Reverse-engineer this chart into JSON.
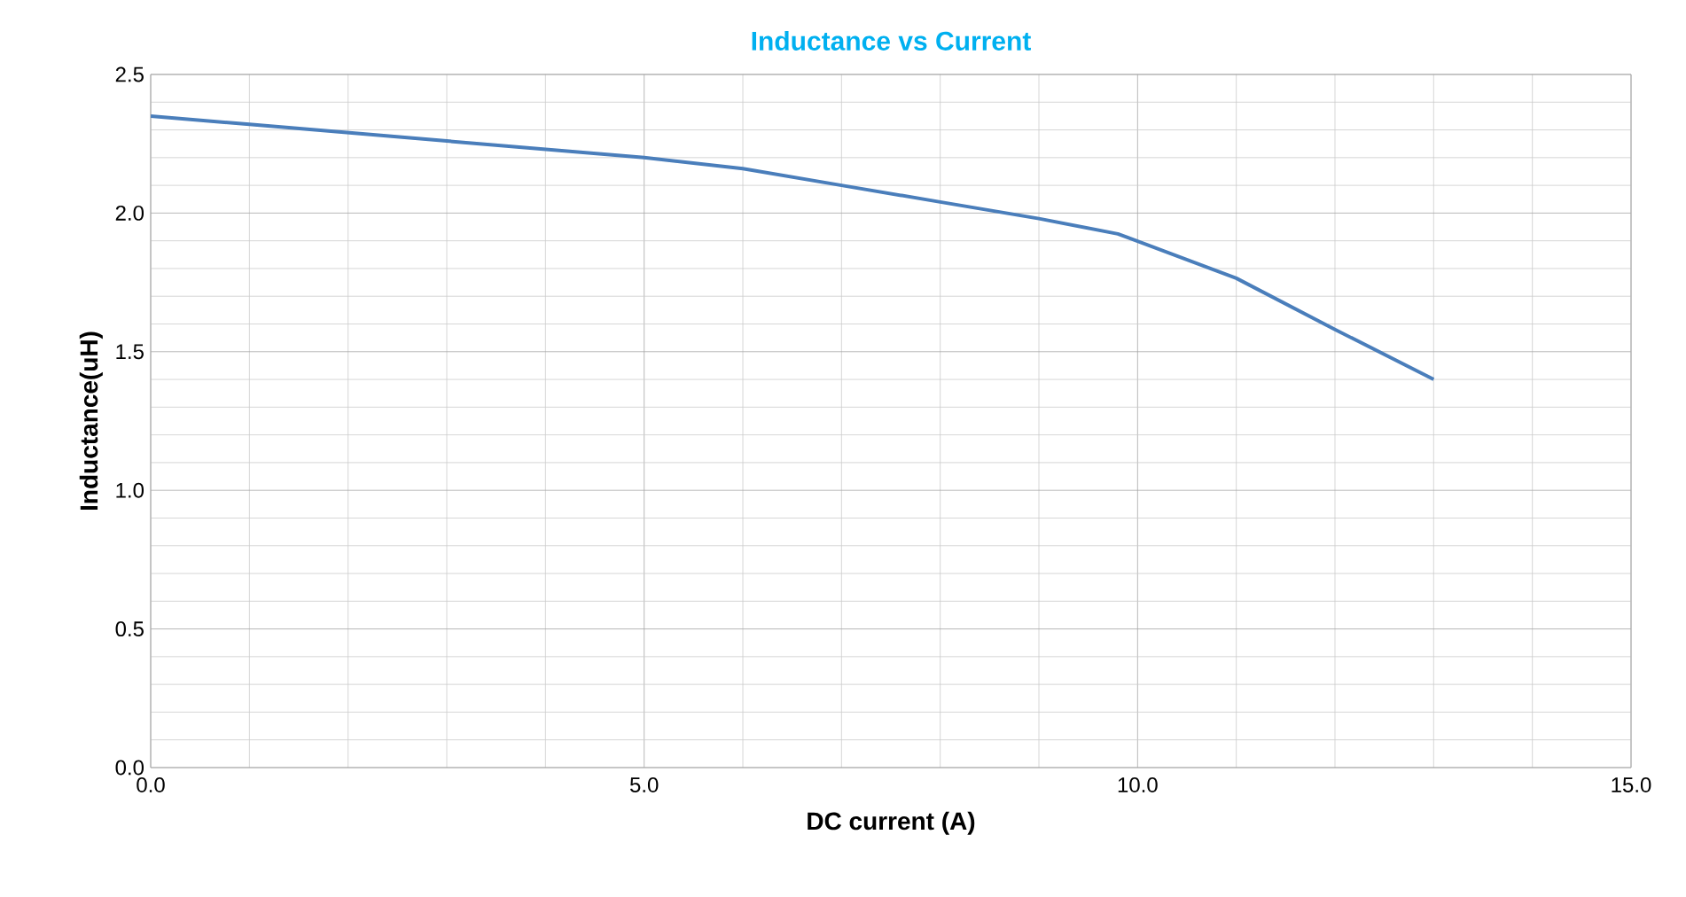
{
  "chart_data": {
    "type": "line",
    "title": "Inductance vs Current",
    "xlabel": "DC current (A)",
    "ylabel": "Inductance(uH)",
    "x": [
      0,
      1,
      3,
      5,
      6,
      7,
      8,
      9,
      9.8,
      11,
      12,
      13
    ],
    "series": [
      {
        "color": "#4a7ebb",
        "values": [
          2.35,
          2.32,
          2.26,
          2.2,
          2.16,
          2.1,
          2.04,
          1.98,
          1.925,
          1.765,
          1.58,
          1.4
        ]
      }
    ],
    "xlim": [
      0,
      15
    ],
    "ylim": [
      0,
      2.5
    ],
    "xticks": [
      {
        "value": 0,
        "label": "0.0"
      },
      {
        "value": 5,
        "label": "5.0"
      },
      {
        "value": 10,
        "label": "10.0"
      },
      {
        "value": 15,
        "label": "15.0"
      }
    ],
    "yticks": [
      {
        "value": 0,
        "label": "0.0"
      },
      {
        "value": 0.5,
        "label": "0.5"
      },
      {
        "value": 1,
        "label": "1.0"
      },
      {
        "value": 1.5,
        "label": "1.5"
      },
      {
        "value": 2,
        "label": "2.0"
      },
      {
        "value": 2.5,
        "label": "2.5"
      }
    ],
    "grid": true,
    "marker": "none",
    "line_style": "solid"
  }
}
